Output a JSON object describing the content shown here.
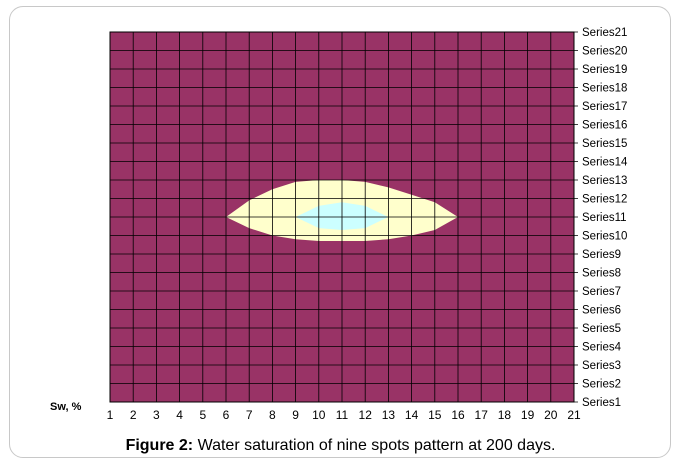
{
  "caption": {
    "label": "Figure 2:",
    "text": "Water saturation of nine spots pattern at 200 days."
  },
  "chart_data": {
    "type": "heatmap",
    "chart_subtype": "contour",
    "ylabel": "Sw, %",
    "categories": [
      "1",
      "2",
      "3",
      "4",
      "5",
      "6",
      "7",
      "8",
      "9",
      "10",
      "11",
      "12",
      "13",
      "14",
      "15",
      "16",
      "17",
      "18",
      "19",
      "20",
      "21"
    ],
    "series": [
      {
        "name": "Series1"
      },
      {
        "name": "Series2"
      },
      {
        "name": "Series3"
      },
      {
        "name": "Series4"
      },
      {
        "name": "Series5"
      },
      {
        "name": "Series6"
      },
      {
        "name": "Series7"
      },
      {
        "name": "Series8"
      },
      {
        "name": "Series9"
      },
      {
        "name": "Series10"
      },
      {
        "name": "Series11"
      },
      {
        "name": "Series12"
      },
      {
        "name": "Series13"
      },
      {
        "name": "Series14"
      },
      {
        "name": "Series15"
      },
      {
        "name": "Series16"
      },
      {
        "name": "Series17"
      },
      {
        "name": "Series18"
      },
      {
        "name": "Series19"
      },
      {
        "name": "Series20"
      },
      {
        "name": "Series21"
      }
    ],
    "contour_bands": [
      {
        "level": "low",
        "color": "#993366"
      },
      {
        "level": "mid",
        "color": "#ffffcc"
      },
      {
        "level": "high",
        "color": "#ccffff"
      }
    ],
    "mid_region_outline": [
      [
        6,
        11
      ],
      [
        7,
        11.9
      ],
      [
        8,
        12.5
      ],
      [
        9,
        12.9
      ],
      [
        10,
        13
      ],
      [
        11,
        13
      ],
      [
        12,
        12.9
      ],
      [
        13,
        12.6
      ],
      [
        14,
        12.2
      ],
      [
        15,
        11.8
      ],
      [
        16,
        11
      ],
      [
        15,
        10.3
      ],
      [
        14,
        10
      ],
      [
        13,
        9.8
      ],
      [
        12,
        9.7
      ],
      [
        11,
        9.7
      ],
      [
        10,
        9.7
      ],
      [
        9,
        9.8
      ],
      [
        8,
        10
      ],
      [
        7,
        10.4
      ],
      [
        6,
        11
      ]
    ],
    "high_region_outline": [
      [
        9,
        11
      ],
      [
        10,
        11.6
      ],
      [
        11,
        11.8
      ],
      [
        12,
        11.6
      ],
      [
        13,
        11
      ],
      [
        12,
        10.4
      ],
      [
        11,
        10.3
      ],
      [
        10,
        10.4
      ],
      [
        9,
        11
      ]
    ],
    "grid": true,
    "legend_placement": "right"
  }
}
